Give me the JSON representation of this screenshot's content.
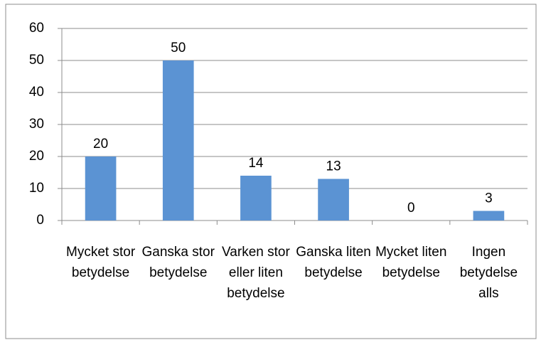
{
  "chart_data": {
    "type": "bar",
    "categories": [
      "Mycket stor betydelse",
      "Ganska stor betydelse",
      "Varken stor eller liten betydelse",
      "Ganska liten betydelse",
      "Mycket liten betydelse",
      "Ingen betydelse alls"
    ],
    "values": [
      20,
      50,
      14,
      13,
      0,
      3
    ],
    "color": "#5b93d3",
    "ylim": [
      0,
      60
    ],
    "yticks": [
      0,
      10,
      20,
      30,
      40,
      50,
      60
    ],
    "grid": true
  }
}
